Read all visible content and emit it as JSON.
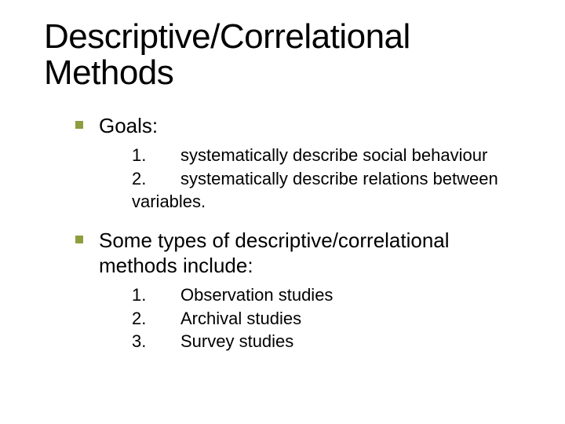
{
  "colors": {
    "background": "#ffffff",
    "text": "#000000",
    "bullet": "#8e9e3e"
  },
  "typography": {
    "family": "Verdana",
    "title_fontsize": 44,
    "bullet_fontsize": 26,
    "sub_fontsize": 22
  },
  "title": "Descriptive/Correlational Methods",
  "sections": [
    {
      "label": "Goals:",
      "items": [
        {
          "num": "1.",
          "text": "systematically describe social behaviour"
        },
        {
          "num": "2.",
          "text": "systematically describe relations between"
        }
      ],
      "trailing": "variables."
    },
    {
      "label": "Some types of descriptive/correlational methods include:",
      "items": [
        {
          "num": "1.",
          "text": "Observation studies"
        },
        {
          "num": "2.",
          "text": "Archival studies"
        },
        {
          "num": "3.",
          "text": "Survey studies"
        }
      ]
    }
  ]
}
